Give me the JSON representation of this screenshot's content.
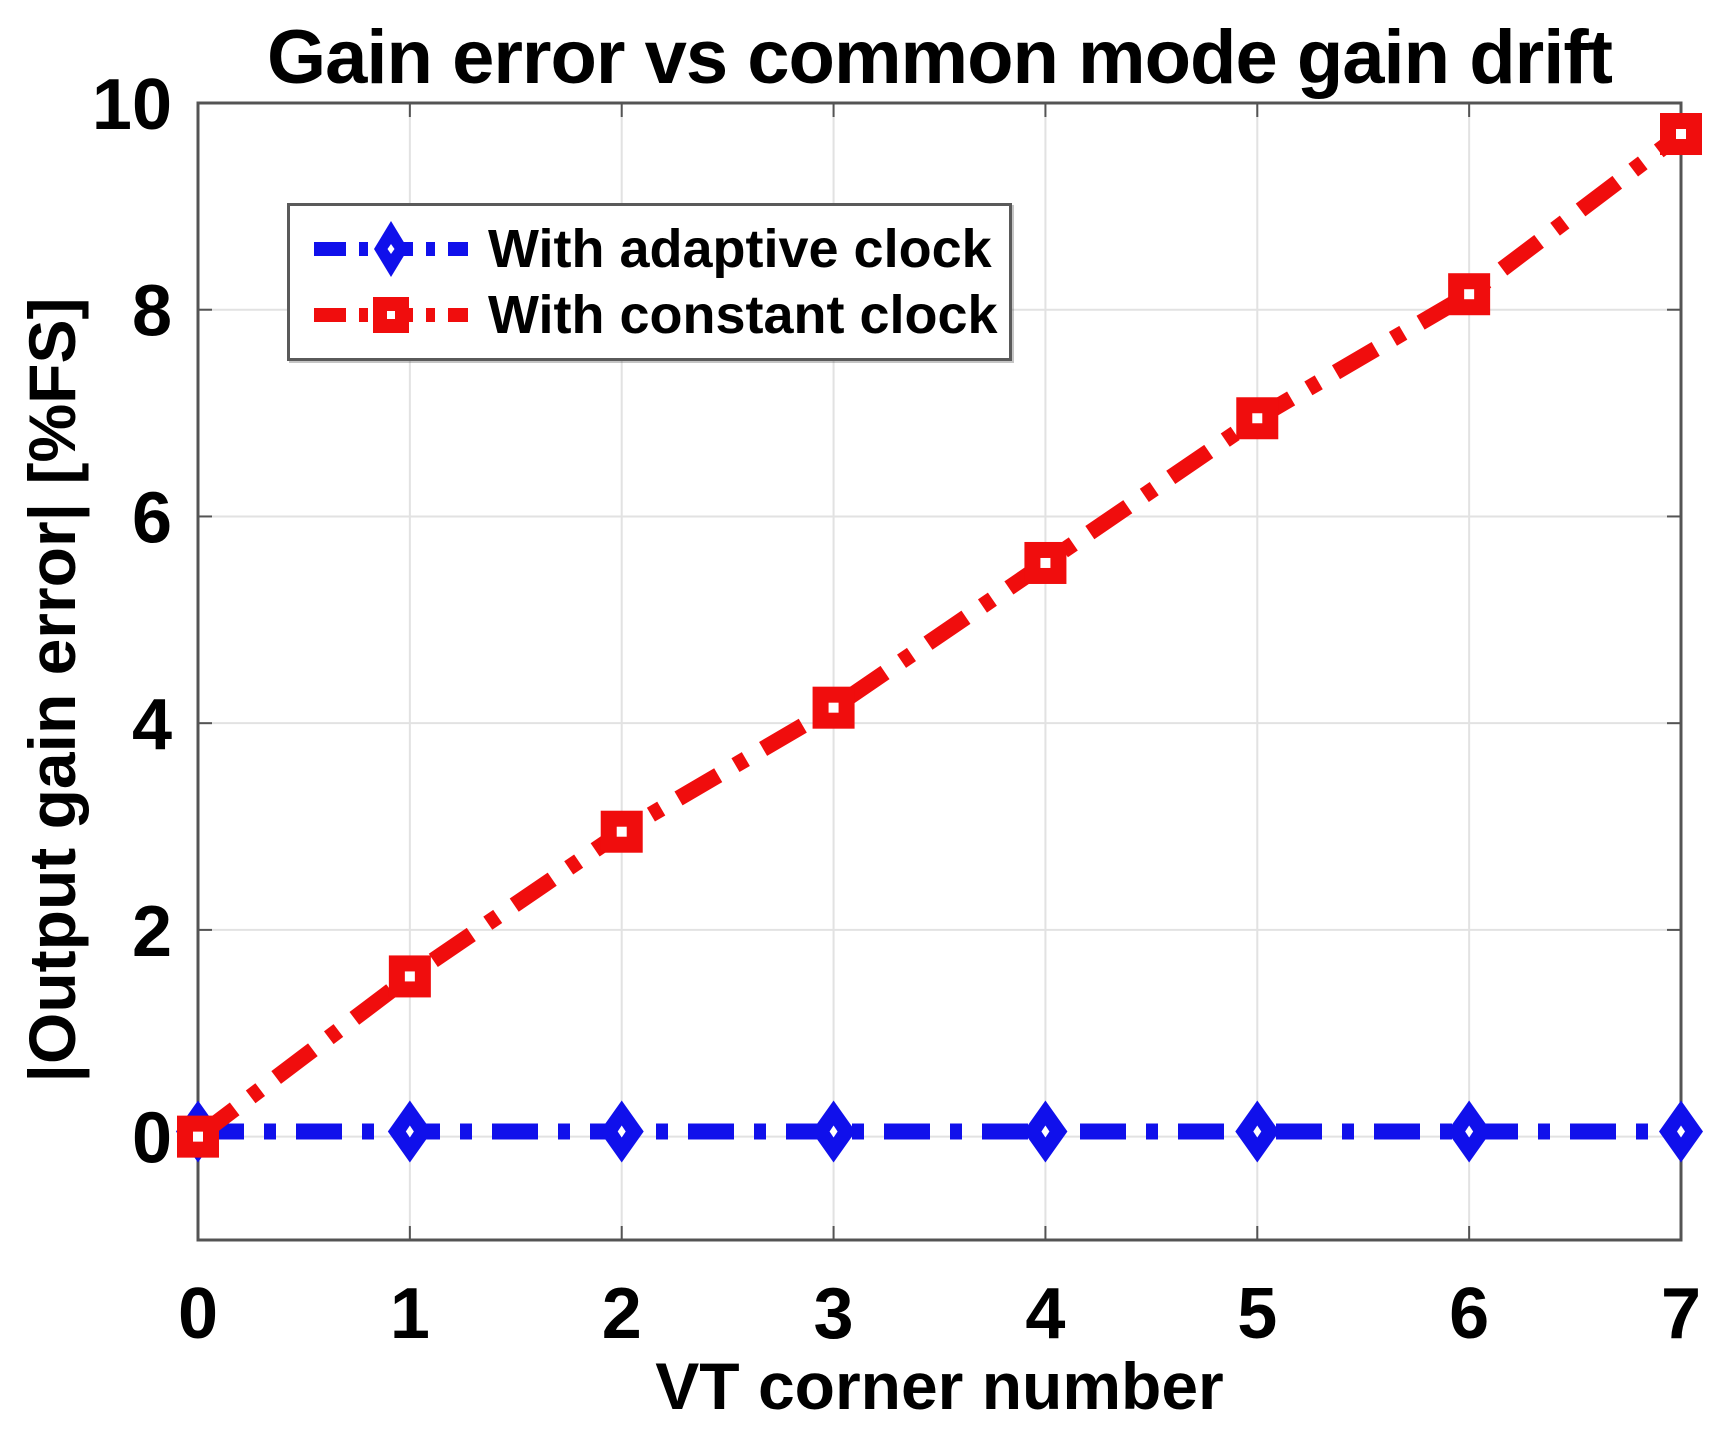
{
  "chart_data": {
    "type": "line",
    "title": "Gain error vs common mode gain drift",
    "xlabel": "VT corner number",
    "ylabel": "|Output gain error| [%FS]",
    "x": [
      0,
      1,
      2,
      3,
      4,
      5,
      6,
      7
    ],
    "xticks": [
      0,
      1,
      2,
      3,
      4,
      5,
      6,
      7
    ],
    "yticks": [
      0,
      2,
      4,
      6,
      8,
      10
    ],
    "xlim": [
      0,
      7
    ],
    "ylim": [
      -1,
      10
    ],
    "grid": true,
    "line_style": "dash-dot",
    "legend_position": "upper-left",
    "series": [
      {
        "name": "With adaptive clock",
        "color": "#1010EB",
        "marker": "diamond",
        "values": [
          0.05,
          0.05,
          0.05,
          0.05,
          0.05,
          0.05,
          0.05,
          0.05
        ]
      },
      {
        "name": "With constant clock",
        "color": "#F00D0D",
        "marker": "square",
        "values": [
          0,
          1.55,
          2.95,
          4.15,
          5.55,
          6.95,
          8.15,
          9.7
        ]
      }
    ],
    "colors": {
      "grid": "#E2E2E2",
      "axis": "#545454",
      "text": "#000000",
      "background": "#FFFFFF"
    }
  }
}
